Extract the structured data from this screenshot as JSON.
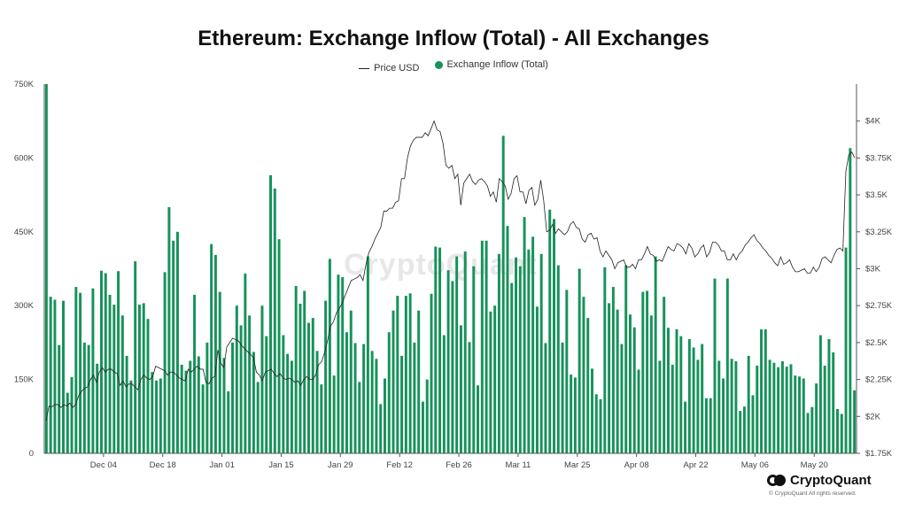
{
  "title": "Ethereum: Exchange Inflow (Total) - All Exchanges",
  "legend": {
    "price_label": "Price USD",
    "inflow_label": "Exchange Inflow (Total)"
  },
  "watermark": "CryptoQuant",
  "brand": {
    "name": "CryptoQuant",
    "copyright": "© CryptoQuant All rights reserved."
  },
  "colors": {
    "bar": "#16925a",
    "line": "#222222",
    "axis": "#555555"
  },
  "chart_data": {
    "type": "bar",
    "title": "Ethereum: Exchange Inflow (Total) - All Exchanges",
    "x_start": "2023-11-20",
    "x_end": "2024-05-22",
    "x_ticks": [
      "Dec 04",
      "Dec 18",
      "Jan 01",
      "Jan 15",
      "Jan 29",
      "Feb 12",
      "Feb 26",
      "Mar 11",
      "Mar 25",
      "Apr 08",
      "Apr 22",
      "May 06",
      "May 20"
    ],
    "y_left_range": [
      0,
      750000
    ],
    "y_left_ticks": [
      "0",
      "150K",
      "300K",
      "450K",
      "600K",
      "750K"
    ],
    "y_right_range": [
      1750,
      4250
    ],
    "y_right_ticks": [
      "$1.75K",
      "$2K",
      "$2.25K",
      "$2.5K",
      "$2.75K",
      "$3K",
      "$3.25K",
      "$3.5K",
      "$3.75K",
      "$4K"
    ],
    "series": [
      {
        "name": "Exchange Inflow (Total)",
        "type": "bar",
        "axis": "left",
        "values": [
          750000,
          318000,
          312000,
          220000,
          310000,
          123000,
          155000,
          338000,
          326000,
          225000,
          220000,
          335000,
          182000,
          371000,
          366000,
          322000,
          302000,
          370000,
          280000,
          198000,
          148000,
          390000,
          302000,
          305000,
          273000,
          165000,
          148000,
          152000,
          368000,
          500000,
          432000,
          450000,
          180000,
          168000,
          188000,
          322000,
          197000,
          140000,
          225000,
          425000,
          403000,
          328000,
          194000,
          126000,
          225000,
          300000,
          260000,
          365000,
          280000,
          206000,
          145000,
          300000,
          238000,
          565000,
          538000,
          435000,
          240000,
          202000,
          188000,
          340000,
          304000,
          330000,
          265000,
          275000,
          208000,
          140000,
          310000,
          395000,
          158000,
          363000,
          358000,
          246000,
          290000,
          224000,
          145000,
          222000,
          400000,
          208000,
          192000,
          100000,
          152000,
          246000,
          290000,
          320000,
          198000,
          320000,
          325000,
          225000,
          290000,
          105000,
          150000,
          324000,
          420000,
          418000,
          240000,
          372000,
          350000,
          400000,
          260000,
          410000,
          226000,
          380000,
          138000,
          432000,
          432000,
          288000,
          300000,
          405000,
          645000,
          462000,
          346000,
          398000,
          380000,
          480000,
          414000,
          440000,
          298000,
          405000,
          224000,
          495000,
          476000,
          382000,
          225000,
          332000,
          160000,
          154000,
          375000,
          318000,
          275000,
          172000,
          120000,
          110000,
          378000,
          305000,
          338000,
          292000,
          222000,
          382000,
          282000,
          256000,
          170000,
          328000,
          330000,
          280000,
          400000,
          188000,
          318000,
          255000,
          180000,
          252000,
          238000,
          105000,
          232000,
          215000,
          190000,
          222000,
          112000,
          112000,
          355000,
          188000,
          152000,
          355000,
          192000,
          187000,
          86000,
          95000,
          198000,
          118000,
          178000,
          252000,
          252000,
          190000,
          184000,
          175000,
          187000,
          176000,
          181000,
          158000,
          156000,
          152000,
          82000,
          94000,
          142000,
          240000,
          178000,
          232000,
          205000,
          90000,
          80000,
          418000,
          620000,
          128000
        ]
      },
      {
        "name": "Price USD",
        "type": "line",
        "axis": "right",
        "values": [
          1970,
          2070,
          2065,
          2080,
          2080,
          2060,
          2080,
          2070,
          2090,
          2060,
          2080,
          2140,
          2170,
          2190,
          2200,
          2250,
          2280,
          2230,
          2300,
          2330,
          2300,
          2320,
          2320,
          2300,
          2290,
          2210,
          2240,
          2200,
          2220,
          2220,
          2200,
          2180,
          2250,
          2280,
          2260,
          2250,
          2270,
          2340,
          2330,
          2320,
          2310,
          2280,
          2300,
          2300,
          2280,
          2260,
          2250,
          2240,
          2320,
          2300,
          2320,
          2340,
          2320,
          2320,
          2230,
          2220,
          2260,
          2270,
          2450,
          2360,
          2330,
          2470,
          2500,
          2530,
          2520,
          2510,
          2480,
          2460,
          2440,
          2420,
          2400,
          2300,
          2280,
          2240,
          2300,
          2310,
          2320,
          2290,
          2270,
          2290,
          2260,
          2250,
          2260,
          2250,
          2230,
          2240,
          2210,
          2250,
          2270,
          2250,
          2250,
          2280,
          2350,
          2370,
          2430,
          2510,
          2610,
          2640,
          2700,
          2730,
          2770,
          2820,
          2870,
          2920,
          2930,
          2940,
          2960,
          2920,
          3030,
          3110,
          3150,
          3200,
          3240,
          3280,
          3390,
          3390,
          3410,
          3410,
          3450,
          3460,
          3610,
          3610,
          3750,
          3830,
          3870,
          3890,
          3890,
          3890,
          3920,
          3900,
          3950,
          4000,
          3940,
          3930,
          3850,
          3700,
          3680,
          3700,
          3610,
          3640,
          3430,
          3580,
          3610,
          3640,
          3590,
          3570,
          3600,
          3610,
          3590,
          3560,
          3490,
          3520,
          3450,
          3610,
          3590,
          3560,
          3470,
          3510,
          3610,
          3630,
          3520,
          3520,
          3440,
          3530,
          3550,
          3430,
          3470,
          3600,
          3460,
          3250,
          3260,
          3300,
          3240,
          3270,
          3250,
          3230,
          3250,
          3300,
          3320,
          3280,
          3270,
          3200,
          3180,
          3230,
          3240,
          3200,
          3210,
          3120,
          3080,
          3120,
          3090,
          3060,
          3000,
          3040,
          3050,
          3060,
          3010,
          3010,
          3030,
          3000,
          3060,
          3060,
          3100,
          3150,
          3100,
          3090,
          3050,
          3060,
          3050,
          3100,
          3150,
          3130,
          3120,
          3170,
          3160,
          3140,
          3100,
          3170,
          3140,
          3080,
          3100,
          3140,
          3160,
          3080,
          3110,
          3180,
          3180,
          3160,
          3120,
          3120,
          3060,
          3060,
          3100,
          3060,
          3100,
          3120,
          3160,
          3180,
          3210,
          3230,
          3190,
          3170,
          3140,
          3120,
          3090,
          3070,
          3040,
          3020,
          3080,
          3030,
          3040,
          3060,
          3010,
          2980,
          2980,
          2990,
          3000,
          2970,
          2970,
          3010,
          2980,
          3010,
          3070,
          3080,
          3060,
          3040,
          3090,
          3130,
          3140,
          3120,
          3660,
          3770,
          3790,
          3750
        ]
      }
    ]
  }
}
